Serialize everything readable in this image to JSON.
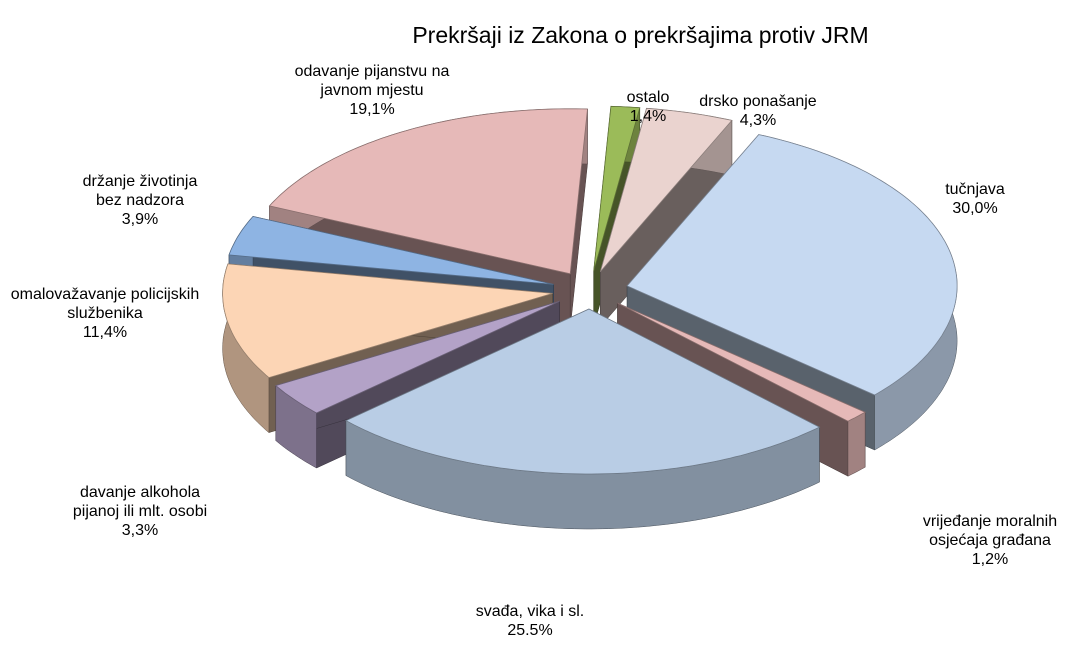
{
  "chart_data": {
    "type": "pie",
    "title": "Prekršaji iz Zakona o prekršajima protiv JRM",
    "categories": [
      "ostalo",
      "drsko ponašanje",
      "tučnjava",
      "vrijeđanje moralnih osjećaja građana",
      "svađa, vika i sl.",
      "davanje alkohola pijanoj ili mlt. osobi",
      "omalovažavanje policijskih službenika",
      "držanje životinja bez nadzora",
      "odavanje pijanstvu na javnom mjestu"
    ],
    "values": [
      1.4,
      4.3,
      30.0,
      1.2,
      25.5,
      3.3,
      11.4,
      3.9,
      19.1
    ],
    "value_labels": [
      "1,4%",
      "4,3%",
      "30,0%",
      "1,2%",
      "25.5%",
      "3,3%",
      "11,4%",
      "3,9%",
      "19,1%"
    ],
    "colors": [
      "#9bbb59",
      "#ead3cf",
      "#c6d9f1",
      "#e6b9b8",
      "#b9cde5",
      "#b3a2c7",
      "#fcd5b5",
      "#8eb4e3",
      "#e6b9b8"
    ]
  }
}
